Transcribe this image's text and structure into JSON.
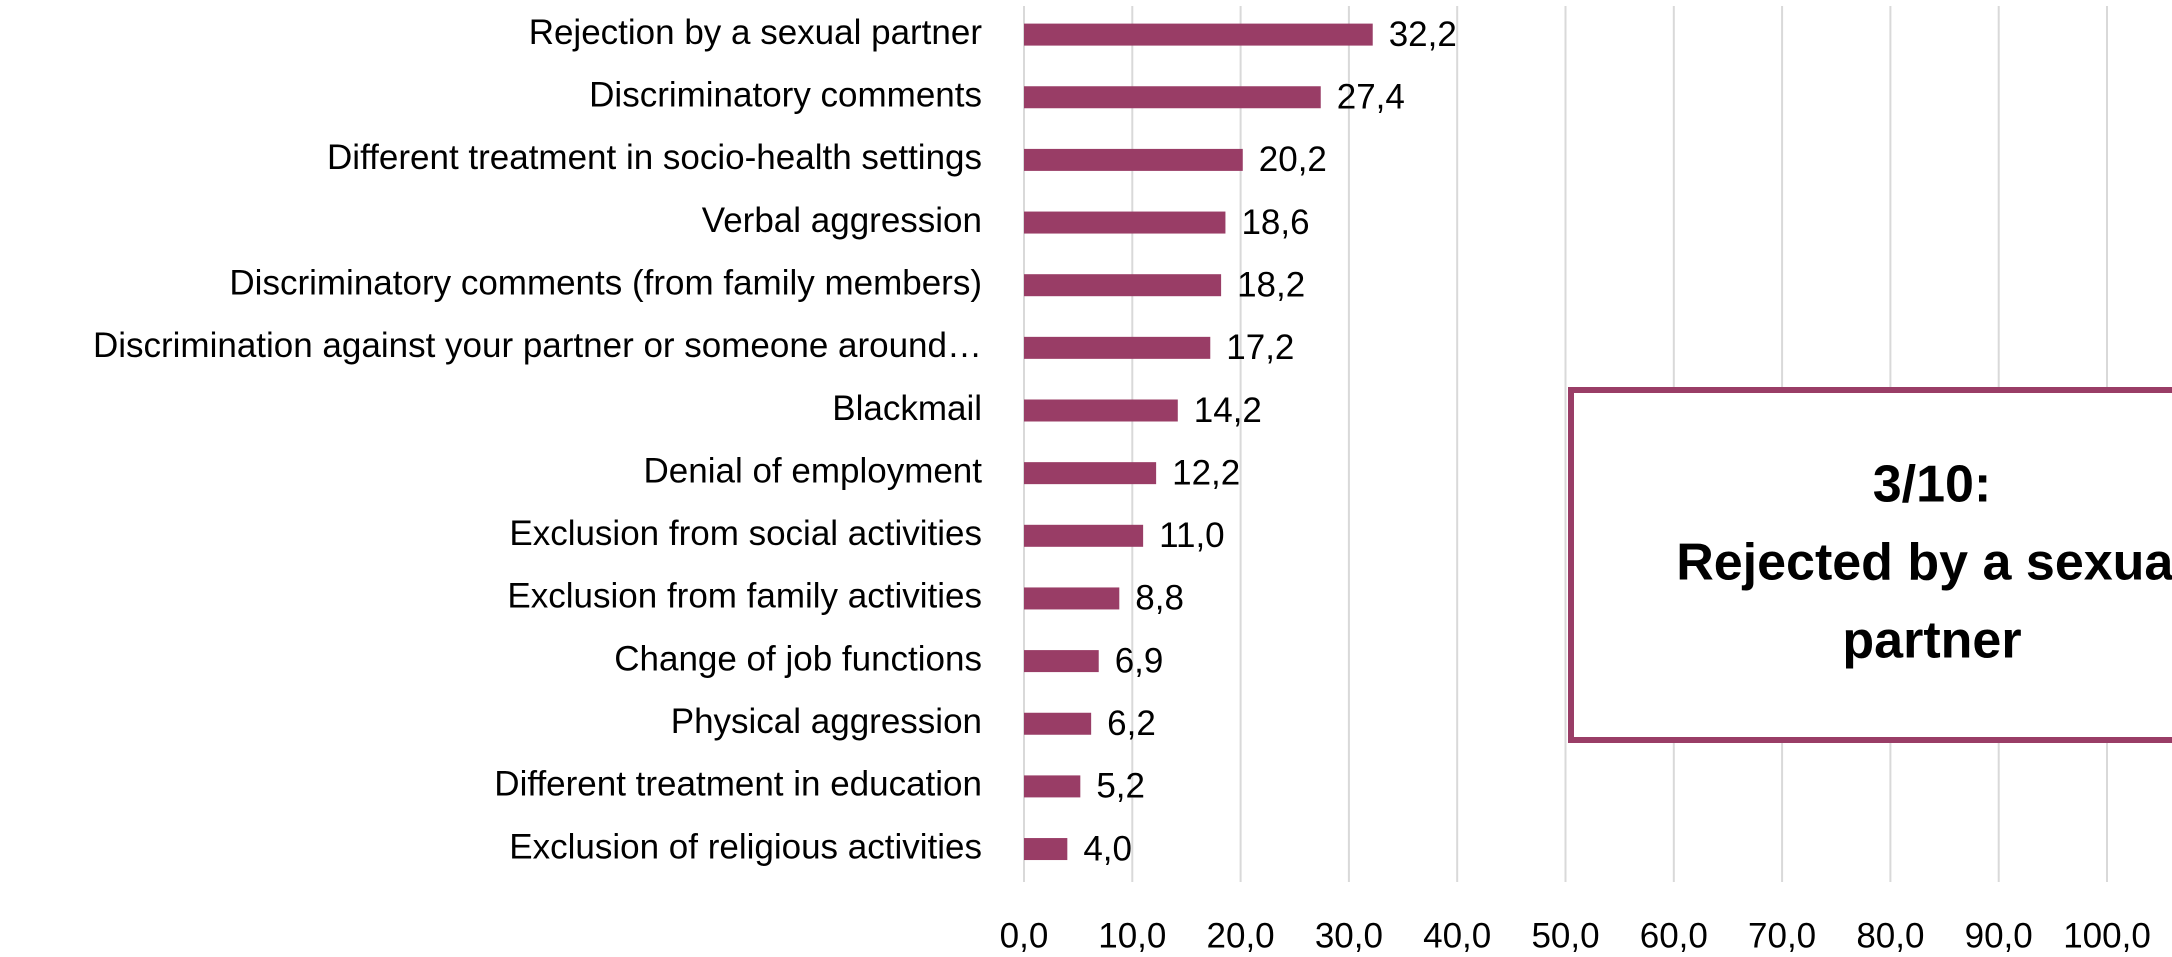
{
  "chart_data": {
    "type": "barh",
    "categories": [
      "Rejection by a sexual partner",
      "Discriminatory comments",
      "Different treatment in socio-health settings",
      "Verbal aggression",
      "Discriminatory comments (from family members)",
      "Discrimination against your partner or someone around…",
      "Blackmail",
      "Denial of employment",
      "Exclusion from social activities",
      "Exclusion from family activities",
      "Change of job functions",
      "Physical aggression",
      "Different treatment in education",
      "Exclusion of religious activities"
    ],
    "values": [
      32.2,
      27.4,
      20.2,
      18.6,
      18.2,
      17.2,
      14.2,
      12.2,
      11.0,
      8.8,
      6.9,
      6.2,
      5.2,
      4.0
    ],
    "value_labels": [
      "32,2",
      "27,4",
      "20,2",
      "18,6",
      "18,2",
      "17,2",
      "14,2",
      "12,2",
      "11,0",
      "8,8",
      "6,9",
      "6,2",
      "5,2",
      "4,0"
    ],
    "color": "#993d66",
    "xlim": [
      0,
      100
    ],
    "xticks": [
      {
        "value": 0,
        "label": "0,0"
      },
      {
        "value": 10,
        "label": "10,0"
      },
      {
        "value": 20,
        "label": "20,0"
      },
      {
        "value": 30,
        "label": "30,0"
      },
      {
        "value": 40,
        "label": "40,0"
      },
      {
        "value": 50,
        "label": "50,0"
      },
      {
        "value": 60,
        "label": "60,0"
      },
      {
        "value": 70,
        "label": "70,0"
      },
      {
        "value": 80,
        "label": "80,0"
      },
      {
        "value": 90,
        "label": "90,0"
      },
      {
        "value": 100,
        "label": "100,0"
      }
    ],
    "grid": true,
    "annotation": {
      "lines": [
        "3/10:",
        "Rejected by a sexual",
        "partner"
      ],
      "color": "#993d66"
    }
  }
}
